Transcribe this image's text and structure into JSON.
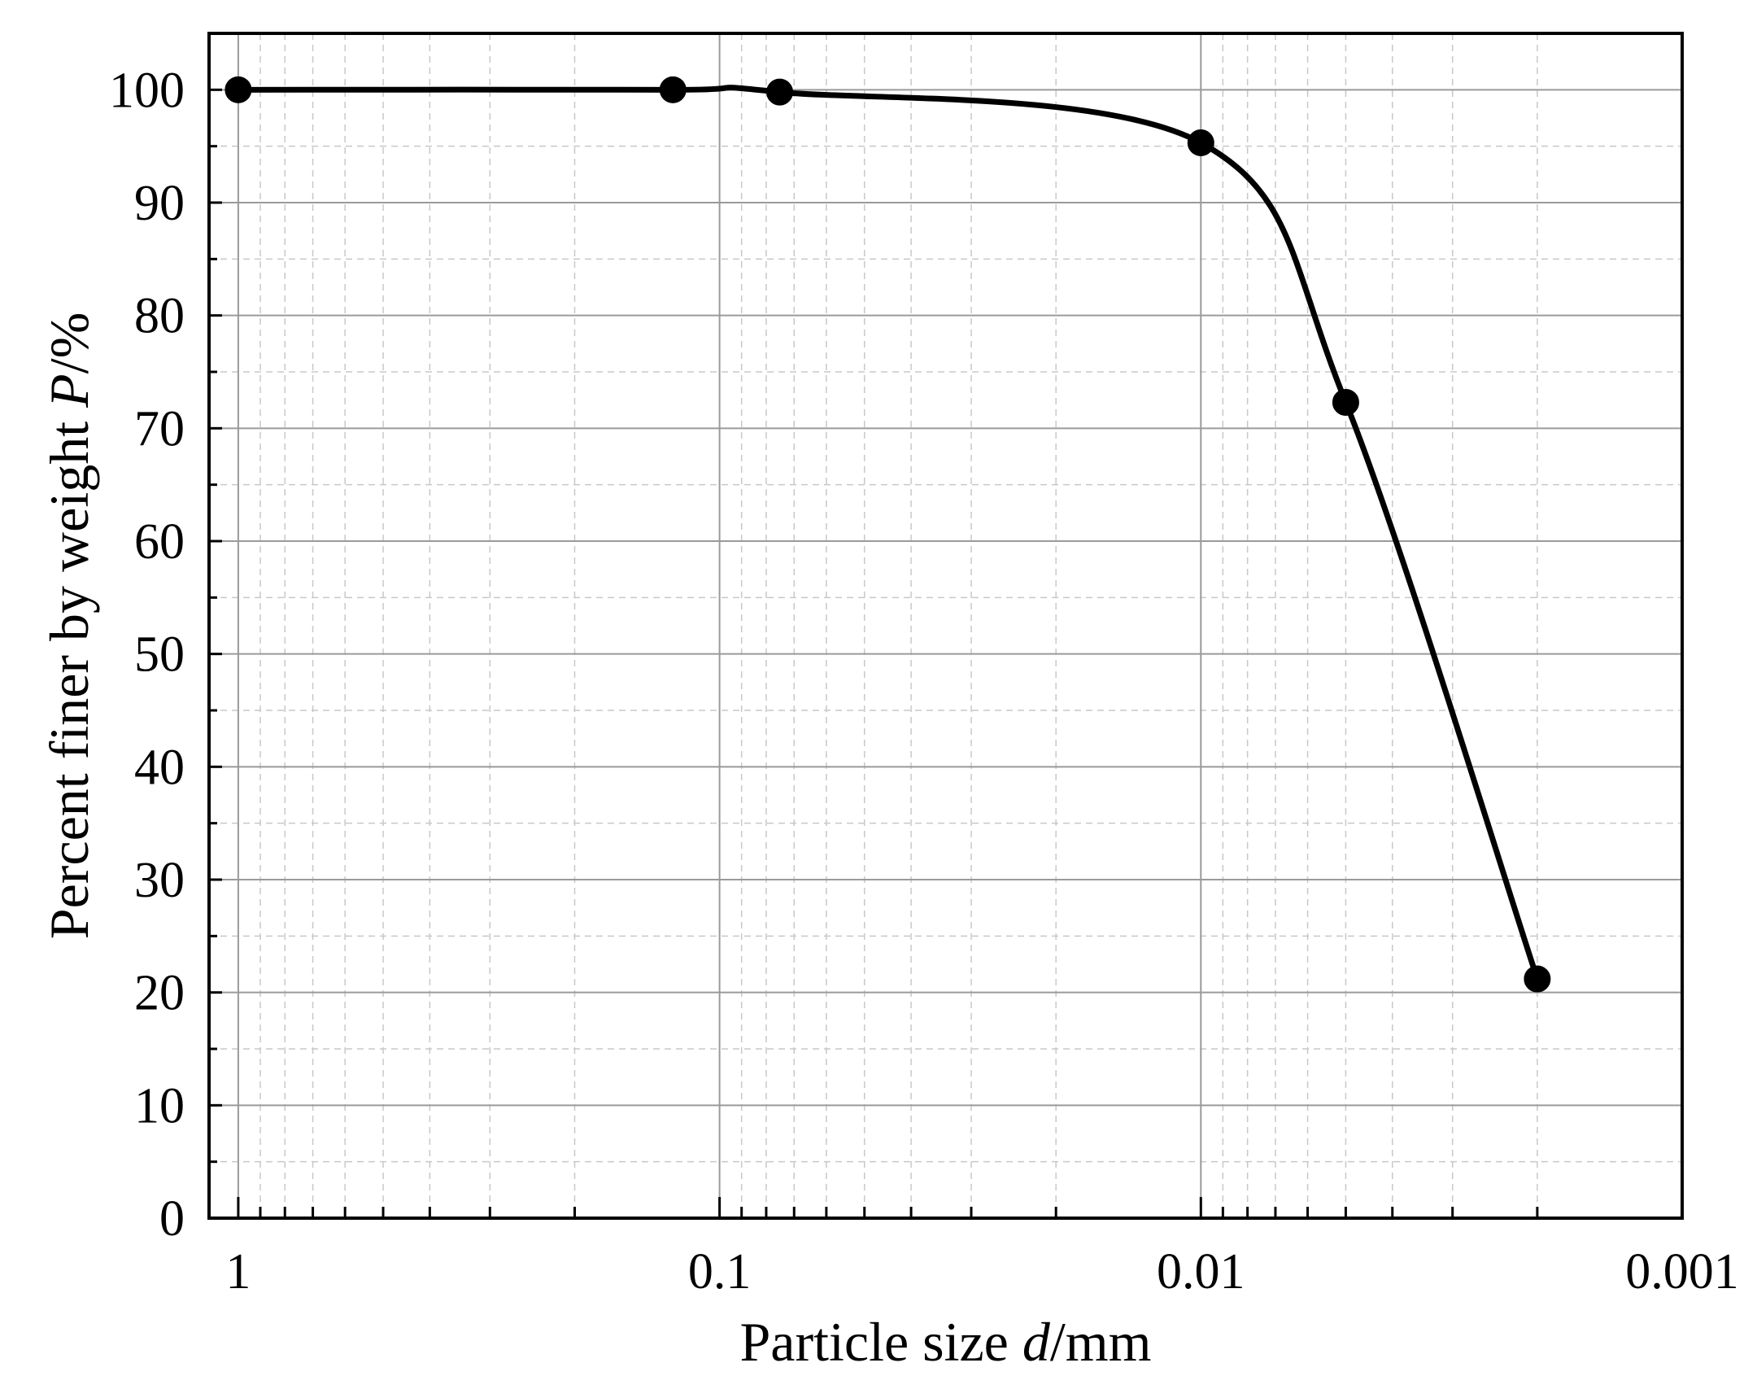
{
  "chart_data": {
    "type": "line",
    "title": "",
    "xlabel_prefix": "Particle size ",
    "xlabel_symbol": "d",
    "xlabel_suffix": "/mm",
    "ylabel_prefix": "Percent finer by weight ",
    "ylabel_symbol": "P",
    "ylabel_suffix": "/%",
    "x_scale": "log",
    "x_reversed": true,
    "xlim": [
      1.15,
      0.001
    ],
    "ylim": [
      0,
      105
    ],
    "x_ticks": [
      1,
      0.1,
      0.01,
      0.001
    ],
    "x_tick_labels": [
      "1",
      "0.1",
      "0.01",
      "0.001"
    ],
    "y_ticks": [
      0,
      10,
      20,
      30,
      40,
      50,
      60,
      70,
      80,
      90,
      100
    ],
    "y_tick_labels": [
      "0",
      "10",
      "20",
      "30",
      "40",
      "50",
      "60",
      "70",
      "80",
      "90",
      "100"
    ],
    "grid": true,
    "series": [
      {
        "markers": true,
        "x": [
          1,
          0.125,
          0.075,
          0.01,
          0.005,
          0.002
        ],
        "y": [
          100,
          100,
          99.8,
          95.3,
          72.3,
          21.2
        ]
      }
    ],
    "line_color": "#000000",
    "marker_color": "#000000"
  }
}
